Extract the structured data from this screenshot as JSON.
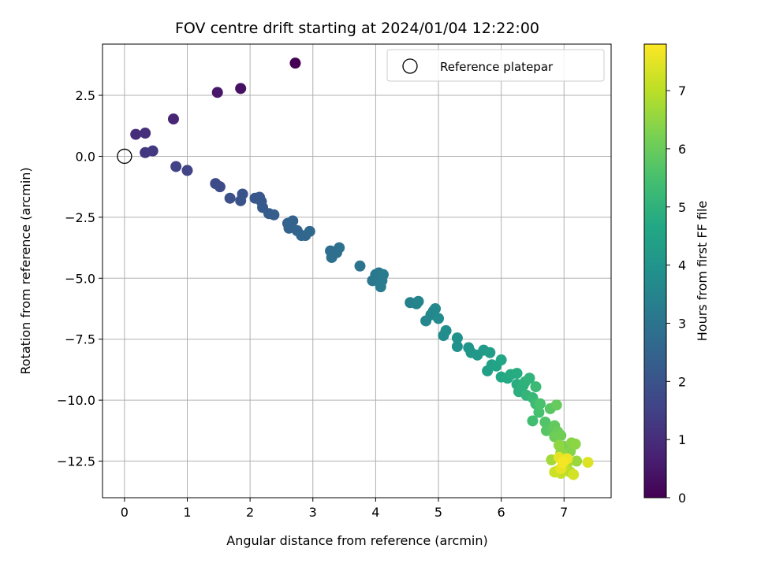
{
  "chart_data": {
    "type": "scatter",
    "title": "FOV centre drift starting at 2024/01/04 12:22:00",
    "xlabel": "Angular distance from reference (arcmin)",
    "ylabel": "Rotation from reference (arcmin)",
    "colorbar_label": "Hours from first FF file",
    "xlim": [
      -0.35,
      7.75
    ],
    "ylim": [
      -14.0,
      4.6
    ],
    "xticks": [
      0,
      1,
      2,
      3,
      4,
      5,
      6,
      7
    ],
    "xtick_labels": [
      "0",
      "1",
      "2",
      "3",
      "4",
      "5",
      "6",
      "7"
    ],
    "yticks": [
      2.5,
      0.0,
      -2.5,
      -5.0,
      -7.5,
      -10.0,
      -12.5
    ],
    "ytick_labels": [
      "2.5",
      "0.0",
      "−2.5",
      "−5.0",
      "−7.5",
      "−10.0",
      "−12.5"
    ],
    "colorbar_range": [
      0,
      7.8
    ],
    "colorbar_ticks": [
      0,
      1,
      2,
      3,
      4,
      5,
      6,
      7
    ],
    "colorbar_tick_labels": [
      "0",
      "1",
      "2",
      "3",
      "4",
      "5",
      "6",
      "7"
    ],
    "colormap": "viridis",
    "grid": true,
    "legend": {
      "placement": "top-right",
      "entries": [
        "Reference platepar"
      ]
    },
    "reference_point": {
      "x": 0.0,
      "y": 0.0
    },
    "points": [
      [
        2.72,
        3.82,
        0.0
      ],
      [
        1.85,
        2.78,
        0.35
      ],
      [
        1.48,
        2.62,
        0.5
      ],
      [
        0.78,
        1.53,
        0.8
      ],
      [
        0.18,
        0.9,
        1.0
      ],
      [
        0.33,
        0.95,
        1.05
      ],
      [
        0.33,
        0.15,
        1.25
      ],
      [
        0.45,
        0.22,
        1.3
      ],
      [
        0.82,
        -0.42,
        1.5
      ],
      [
        1.0,
        -0.58,
        1.55
      ],
      [
        1.45,
        -1.12,
        1.75
      ],
      [
        1.52,
        -1.25,
        1.8
      ],
      [
        1.68,
        -1.72,
        1.9
      ],
      [
        1.85,
        -1.82,
        2.0
      ],
      [
        1.88,
        -1.55,
        2.0
      ],
      [
        2.08,
        -1.72,
        2.1
      ],
      [
        2.15,
        -1.68,
        2.1
      ],
      [
        2.18,
        -1.85,
        2.15
      ],
      [
        2.2,
        -2.1,
        2.2
      ],
      [
        2.3,
        -2.35,
        2.25
      ],
      [
        2.38,
        -2.4,
        2.3
      ],
      [
        2.6,
        -2.75,
        2.4
      ],
      [
        2.62,
        -2.95,
        2.45
      ],
      [
        2.68,
        -2.65,
        2.45
      ],
      [
        2.75,
        -3.05,
        2.5
      ],
      [
        2.82,
        -3.25,
        2.6
      ],
      [
        2.88,
        -3.25,
        2.6
      ],
      [
        2.95,
        -3.08,
        2.65
      ],
      [
        3.28,
        -3.88,
        2.8
      ],
      [
        3.3,
        -4.15,
        2.85
      ],
      [
        3.38,
        -3.95,
        2.85
      ],
      [
        3.42,
        -3.75,
        2.9
      ],
      [
        3.75,
        -4.5,
        3.0
      ],
      [
        3.95,
        -5.1,
        3.1
      ],
      [
        4.0,
        -4.85,
        3.1
      ],
      [
        4.05,
        -4.78,
        3.15
      ],
      [
        4.1,
        -5.1,
        3.2
      ],
      [
        4.08,
        -5.35,
        3.2
      ],
      [
        4.12,
        -4.85,
        3.2
      ],
      [
        4.55,
        -6.0,
        3.4
      ],
      [
        4.65,
        -6.05,
        3.45
      ],
      [
        4.68,
        -5.95,
        3.5
      ],
      [
        4.8,
        -6.75,
        3.55
      ],
      [
        4.88,
        -6.5,
        3.6
      ],
      [
        4.92,
        -6.35,
        3.6
      ],
      [
        4.95,
        -6.25,
        3.65
      ],
      [
        5.0,
        -6.65,
        3.7
      ],
      [
        5.08,
        -7.35,
        3.75
      ],
      [
        5.12,
        -7.15,
        3.8
      ],
      [
        5.3,
        -7.45,
        3.9
      ],
      [
        5.3,
        -7.8,
        3.9
      ],
      [
        5.48,
        -7.85,
        4.0
      ],
      [
        5.52,
        -8.05,
        4.1
      ],
      [
        5.62,
        -8.15,
        4.15
      ],
      [
        5.72,
        -7.95,
        4.2
      ],
      [
        5.82,
        -8.05,
        4.3
      ],
      [
        5.78,
        -8.8,
        4.4
      ],
      [
        5.85,
        -8.55,
        4.45
      ],
      [
        5.92,
        -8.6,
        4.5
      ],
      [
        6.0,
        -8.35,
        4.6
      ],
      [
        6.0,
        -9.05,
        4.65
      ],
      [
        6.1,
        -9.1,
        4.7
      ],
      [
        6.15,
        -8.95,
        4.75
      ],
      [
        6.25,
        -8.9,
        4.8
      ],
      [
        6.25,
        -9.35,
        4.85
      ],
      [
        6.28,
        -9.65,
        4.9
      ],
      [
        6.35,
        -9.4,
        4.95
      ],
      [
        6.38,
        -9.25,
        5.0
      ],
      [
        6.45,
        -9.1,
        5.05
      ],
      [
        6.4,
        -9.8,
        5.1
      ],
      [
        6.5,
        -9.9,
        5.2
      ],
      [
        6.55,
        -9.45,
        5.25
      ],
      [
        6.55,
        -10.15,
        5.3
      ],
      [
        6.5,
        -10.85,
        5.4
      ],
      [
        6.6,
        -10.5,
        5.5
      ],
      [
        6.62,
        -10.15,
        5.55
      ],
      [
        6.7,
        -10.9,
        5.65
      ],
      [
        6.72,
        -11.25,
        5.7
      ],
      [
        6.78,
        -10.35,
        5.75
      ],
      [
        6.8,
        -11.2,
        5.8
      ],
      [
        6.85,
        -11.05,
        5.9
      ],
      [
        6.88,
        -10.2,
        5.95
      ],
      [
        6.9,
        -11.3,
        6.0
      ],
      [
        6.85,
        -11.5,
        6.05
      ],
      [
        6.95,
        -11.45,
        6.1
      ],
      [
        7.0,
        -11.9,
        6.2
      ],
      [
        7.05,
        -12.25,
        6.3
      ],
      [
        7.1,
        -12.1,
        6.35
      ],
      [
        7.12,
        -11.75,
        6.4
      ],
      [
        7.18,
        -11.8,
        6.45
      ],
      [
        6.95,
        -12.15,
        6.5
      ],
      [
        6.92,
        -11.85,
        6.5
      ],
      [
        7.2,
        -12.5,
        6.6
      ],
      [
        6.8,
        -12.45,
        6.7
      ],
      [
        7.05,
        -12.6,
        6.8
      ],
      [
        7.1,
        -12.95,
        6.9
      ],
      [
        6.9,
        -12.9,
        7.0
      ],
      [
        7.0,
        -12.75,
        7.05
      ],
      [
        6.95,
        -13.0,
        7.1
      ],
      [
        6.85,
        -12.95,
        7.2
      ],
      [
        7.15,
        -13.05,
        7.3
      ],
      [
        7.38,
        -12.55,
        7.4
      ],
      [
        6.92,
        -12.35,
        7.5
      ],
      [
        6.95,
        -12.8,
        7.55
      ],
      [
        7.05,
        -12.4,
        7.6
      ],
      [
        6.98,
        -12.55,
        7.7
      ]
    ]
  }
}
